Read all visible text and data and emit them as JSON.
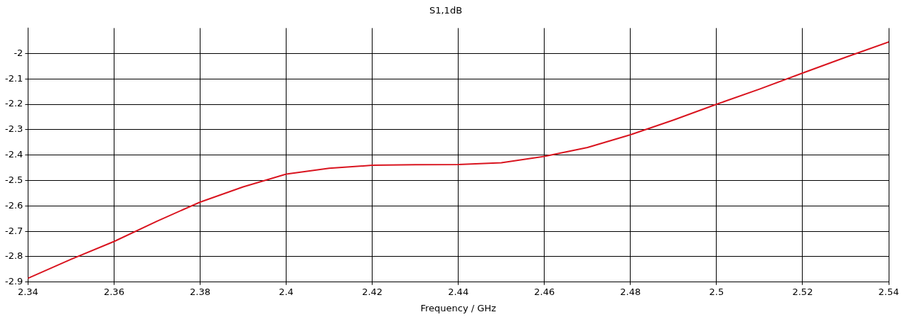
{
  "chart_data": {
    "type": "line",
    "title": "S1,1dB",
    "xlabel": "Frequency / GHz",
    "x": [
      2.34,
      2.35,
      2.36,
      2.37,
      2.38,
      2.39,
      2.4,
      2.41,
      2.42,
      2.43,
      2.44,
      2.45,
      2.46,
      2.47,
      2.48,
      2.49,
      2.5,
      2.51,
      2.52,
      2.53,
      2.54
    ],
    "series": [
      {
        "color": "#d9141f",
        "values": [
          -2.885,
          -2.81,
          -2.74,
          -2.66,
          -2.585,
          -2.525,
          -2.475,
          -2.452,
          -2.44,
          -2.438,
          -2.437,
          -2.43,
          -2.405,
          -2.37,
          -2.32,
          -2.262,
          -2.2,
          -2.14,
          -2.077,
          -2.015,
          -1.955
        ]
      }
    ],
    "xlim": [
      2.34,
      2.54
    ],
    "xticks": [
      2.34,
      2.36,
      2.38,
      2.4,
      2.42,
      2.44,
      2.46,
      2.48,
      2.5,
      2.52,
      2.54
    ],
    "ylim": [
      -2.9,
      -1.9
    ],
    "yticks": [
      -2.9,
      -2.8,
      -2.7,
      -2.6,
      -2.5,
      -2.4,
      -2.3,
      -2.2,
      -2.1,
      -2
    ],
    "grid": true,
    "marker": "none",
    "line_style": "solid",
    "legend": false
  }
}
